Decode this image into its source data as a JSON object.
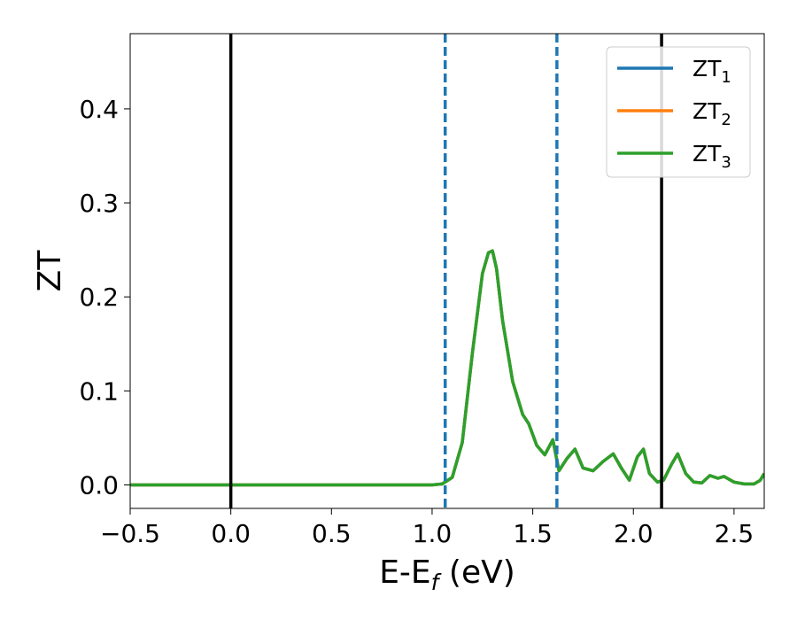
{
  "chart_data": {
    "type": "line",
    "xlabel": "E-E_f (eV)",
    "ylabel": "ZT",
    "xlim": [
      -0.5,
      2.65
    ],
    "ylim": [
      -0.025,
      0.48
    ],
    "x_ticks": [
      -0.5,
      0.0,
      0.5,
      1.0,
      1.5,
      2.0,
      2.5
    ],
    "x_tick_labels": [
      "−0.5",
      "0.0",
      "0.5",
      "1.0",
      "1.5",
      "2.0",
      "2.5"
    ],
    "y_ticks": [
      0.0,
      0.1,
      0.2,
      0.3,
      0.4
    ],
    "y_tick_labels": [
      "0.0",
      "0.1",
      "0.2",
      "0.3",
      "0.4"
    ],
    "grid": false,
    "legend": {
      "position": "top-right",
      "entries": [
        {
          "base": "ZT",
          "sub": "1",
          "color": "#1f77b4"
        },
        {
          "base": "ZT",
          "sub": "2",
          "color": "#ff7f0e"
        },
        {
          "base": "ZT",
          "sub": "3",
          "color": "#2ca02c"
        }
      ]
    },
    "vertical_lines": [
      {
        "x": 0.0,
        "style": "solid",
        "color": "#000000"
      },
      {
        "x": 2.14,
        "style": "solid",
        "color": "#000000"
      },
      {
        "x": 1.065,
        "style": "dashed",
        "color": "#1f77b4"
      },
      {
        "x": 1.62,
        "style": "dashed",
        "color": "#1f77b4"
      }
    ],
    "series": [
      {
        "name": "ZT1",
        "color": "#1f77b4",
        "x": [
          -0.5,
          0.0,
          0.5,
          1.0,
          1.05,
          1.1,
          1.15,
          1.2,
          1.25,
          1.28,
          1.3,
          1.32,
          1.35,
          1.4,
          1.45,
          1.48,
          1.52,
          1.56,
          1.6,
          1.63,
          1.67,
          1.71,
          1.75,
          1.8,
          1.85,
          1.9,
          1.94,
          1.98,
          2.02,
          2.05,
          2.08,
          2.12,
          2.15,
          2.19,
          2.22,
          2.26,
          2.3,
          2.34,
          2.38,
          2.42,
          2.45,
          2.5,
          2.55,
          2.6,
          2.63,
          2.65
        ],
        "y": [
          0.0,
          0.0,
          0.0,
          0.0,
          0.001,
          0.008,
          0.045,
          0.14,
          0.225,
          0.247,
          0.249,
          0.23,
          0.175,
          0.11,
          0.075,
          0.065,
          0.042,
          0.032,
          0.048,
          0.015,
          0.028,
          0.038,
          0.018,
          0.015,
          0.025,
          0.033,
          0.018,
          0.005,
          0.03,
          0.038,
          0.012,
          0.003,
          0.005,
          0.022,
          0.033,
          0.012,
          0.003,
          0.002,
          0.01,
          0.007,
          0.009,
          0.003,
          0.001,
          0.001,
          0.005,
          0.012
        ]
      },
      {
        "name": "ZT2",
        "color": "#ff7f0e",
        "x": [
          -0.5,
          0.0,
          0.5,
          1.0,
          1.05,
          1.1,
          1.15,
          1.2,
          1.25,
          1.28,
          1.3,
          1.32,
          1.35,
          1.4,
          1.45,
          1.48,
          1.52,
          1.56,
          1.6,
          1.63,
          1.67,
          1.71,
          1.75,
          1.8,
          1.85,
          1.9,
          1.94,
          1.98,
          2.02,
          2.05,
          2.08,
          2.12,
          2.15,
          2.19,
          2.22,
          2.26,
          2.3,
          2.34,
          2.38,
          2.42,
          2.45,
          2.5,
          2.55,
          2.6,
          2.63,
          2.65
        ],
        "y": [
          0.0,
          0.0,
          0.0,
          0.0,
          0.001,
          0.008,
          0.045,
          0.14,
          0.225,
          0.247,
          0.249,
          0.23,
          0.175,
          0.11,
          0.075,
          0.065,
          0.042,
          0.032,
          0.048,
          0.015,
          0.028,
          0.038,
          0.018,
          0.015,
          0.025,
          0.033,
          0.018,
          0.005,
          0.03,
          0.038,
          0.012,
          0.003,
          0.005,
          0.022,
          0.033,
          0.012,
          0.003,
          0.002,
          0.01,
          0.007,
          0.009,
          0.003,
          0.001,
          0.001,
          0.005,
          0.012
        ]
      },
      {
        "name": "ZT3",
        "color": "#2ca02c",
        "x": [
          -0.5,
          0.0,
          0.5,
          1.0,
          1.05,
          1.1,
          1.15,
          1.2,
          1.25,
          1.28,
          1.3,
          1.32,
          1.35,
          1.4,
          1.45,
          1.48,
          1.52,
          1.56,
          1.6,
          1.63,
          1.67,
          1.71,
          1.75,
          1.8,
          1.85,
          1.9,
          1.94,
          1.98,
          2.02,
          2.05,
          2.08,
          2.12,
          2.15,
          2.19,
          2.22,
          2.26,
          2.3,
          2.34,
          2.38,
          2.42,
          2.45,
          2.5,
          2.55,
          2.6,
          2.63,
          2.65
        ],
        "y": [
          0.0,
          0.0,
          0.0,
          0.0,
          0.001,
          0.008,
          0.045,
          0.14,
          0.225,
          0.247,
          0.249,
          0.23,
          0.175,
          0.11,
          0.075,
          0.065,
          0.042,
          0.032,
          0.048,
          0.015,
          0.028,
          0.038,
          0.018,
          0.015,
          0.025,
          0.033,
          0.018,
          0.005,
          0.03,
          0.038,
          0.012,
          0.003,
          0.005,
          0.022,
          0.033,
          0.012,
          0.003,
          0.002,
          0.01,
          0.007,
          0.009,
          0.003,
          0.001,
          0.001,
          0.005,
          0.012
        ]
      }
    ]
  }
}
